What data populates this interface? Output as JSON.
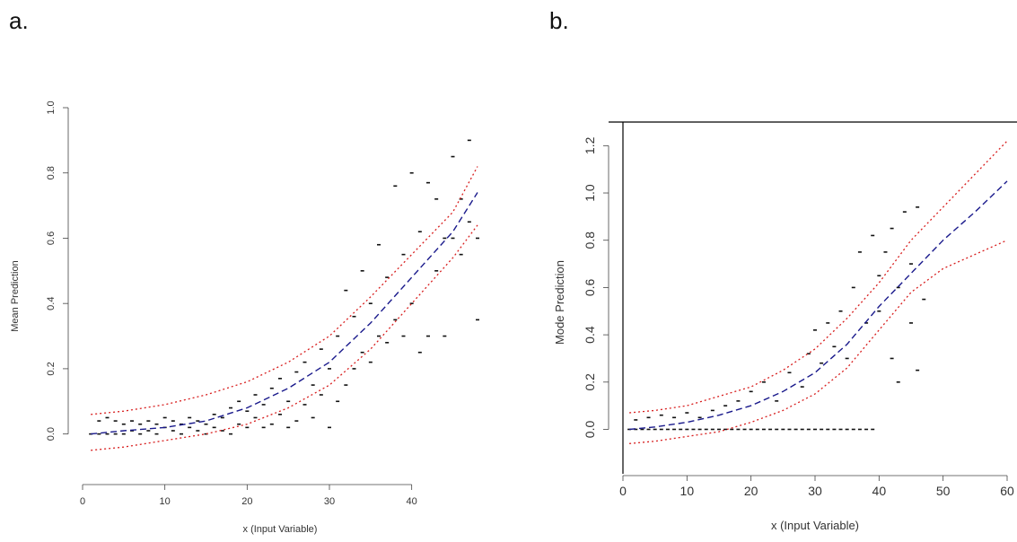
{
  "panels": {
    "a_label": "a.",
    "b_label": "b."
  },
  "colors": {
    "points": "#111111",
    "mean": "#1a1a8c",
    "interval": "#d81e1e",
    "frame": "#000000"
  },
  "chart_data": [
    {
      "type": "scatter",
      "panel": "a.",
      "xlabel": "x (Input Variable)",
      "ylabel": "Mean Prediction",
      "xlim": [
        0,
        48
      ],
      "ylim": [
        -0.1,
        1.0
      ],
      "xticks": [
        "0",
        "10",
        "20",
        "30",
        "40"
      ],
      "xtick_values": [
        0,
        10,
        20,
        30,
        40
      ],
      "yticks": [
        "0.0",
        "0.2",
        "0.4",
        "0.6",
        "0.8",
        "1.0"
      ],
      "ytick_values": [
        0.0,
        0.2,
        0.4,
        0.6,
        0.8,
        1.0
      ],
      "frame": false,
      "points": [
        [
          1,
          0.0
        ],
        [
          2,
          0.0
        ],
        [
          2,
          0.04
        ],
        [
          3,
          0.0
        ],
        [
          3,
          0.05
        ],
        [
          4,
          0.0
        ],
        [
          4,
          0.04
        ],
        [
          5,
          0.0
        ],
        [
          5,
          0.03
        ],
        [
          6,
          0.01
        ],
        [
          6,
          0.04
        ],
        [
          7,
          0.0
        ],
        [
          7,
          0.03
        ],
        [
          8,
          0.01
        ],
        [
          8,
          0.04
        ],
        [
          9,
          0.0
        ],
        [
          9,
          0.03
        ],
        [
          10,
          0.02
        ],
        [
          10,
          0.05
        ],
        [
          11,
          0.01
        ],
        [
          11,
          0.04
        ],
        [
          12,
          0.0
        ],
        [
          12,
          0.03
        ],
        [
          13,
          0.02
        ],
        [
          13,
          0.05
        ],
        [
          14,
          0.01
        ],
        [
          14,
          0.04
        ],
        [
          15,
          0.0
        ],
        [
          15,
          0.03
        ],
        [
          16,
          0.02
        ],
        [
          16,
          0.06
        ],
        [
          17,
          0.01
        ],
        [
          17,
          0.05
        ],
        [
          18,
          0.0
        ],
        [
          18,
          0.08
        ],
        [
          19,
          0.03
        ],
        [
          19,
          0.1
        ],
        [
          20,
          0.02
        ],
        [
          20,
          0.07
        ],
        [
          21,
          0.05
        ],
        [
          21,
          0.12
        ],
        [
          22,
          0.02
        ],
        [
          22,
          0.09
        ],
        [
          23,
          0.03
        ],
        [
          23,
          0.14
        ],
        [
          24,
          0.06
        ],
        [
          24,
          0.17
        ],
        [
          25,
          0.02
        ],
        [
          25,
          0.1
        ],
        [
          26,
          0.04
        ],
        [
          26,
          0.19
        ],
        [
          27,
          0.09
        ],
        [
          27,
          0.22
        ],
        [
          28,
          0.05
        ],
        [
          28,
          0.15
        ],
        [
          29,
          0.12
        ],
        [
          29,
          0.26
        ],
        [
          30,
          0.02
        ],
        [
          30,
          0.2
        ],
        [
          31,
          0.1
        ],
        [
          31,
          0.3
        ],
        [
          32,
          0.15
        ],
        [
          32,
          0.44
        ],
        [
          33,
          0.2
        ],
        [
          33,
          0.36
        ],
        [
          34,
          0.25
        ],
        [
          34,
          0.5
        ],
        [
          35,
          0.22
        ],
        [
          35,
          0.4
        ],
        [
          36,
          0.3
        ],
        [
          36,
          0.58
        ],
        [
          37,
          0.28
        ],
        [
          37,
          0.48
        ],
        [
          38,
          0.35
        ],
        [
          38,
          0.76
        ],
        [
          39,
          0.3
        ],
        [
          39,
          0.55
        ],
        [
          40,
          0.4
        ],
        [
          40,
          0.8
        ],
        [
          41,
          0.25
        ],
        [
          41,
          0.62
        ],
        [
          42,
          0.3
        ],
        [
          42,
          0.77
        ],
        [
          43,
          0.5
        ],
        [
          43,
          0.72
        ],
        [
          44,
          0.3
        ],
        [
          44,
          0.6
        ],
        [
          45,
          0.6
        ],
        [
          45,
          0.85
        ],
        [
          46,
          0.55
        ],
        [
          46,
          0.72
        ],
        [
          47,
          0.65
        ],
        [
          47,
          0.9
        ],
        [
          48,
          0.35
        ],
        [
          48,
          0.6
        ]
      ],
      "mean_line": [
        [
          1,
          0.0
        ],
        [
          5,
          0.01
        ],
        [
          10,
          0.02
        ],
        [
          15,
          0.04
        ],
        [
          20,
          0.08
        ],
        [
          25,
          0.14
        ],
        [
          30,
          0.22
        ],
        [
          35,
          0.34
        ],
        [
          40,
          0.48
        ],
        [
          45,
          0.62
        ],
        [
          48,
          0.74
        ]
      ],
      "upper_line": [
        [
          1,
          0.06
        ],
        [
          5,
          0.07
        ],
        [
          10,
          0.09
        ],
        [
          15,
          0.12
        ],
        [
          20,
          0.16
        ],
        [
          25,
          0.22
        ],
        [
          30,
          0.3
        ],
        [
          35,
          0.42
        ],
        [
          40,
          0.55
        ],
        [
          45,
          0.68
        ],
        [
          48,
          0.82
        ]
      ],
      "lower_line": [
        [
          1,
          -0.05
        ],
        [
          5,
          -0.04
        ],
        [
          10,
          -0.02
        ],
        [
          15,
          0.0
        ],
        [
          20,
          0.03
        ],
        [
          25,
          0.08
        ],
        [
          30,
          0.15
        ],
        [
          35,
          0.26
        ],
        [
          40,
          0.4
        ],
        [
          45,
          0.54
        ],
        [
          48,
          0.64
        ]
      ]
    },
    {
      "type": "scatter",
      "panel": "b.",
      "xlabel": "x (Input Variable)",
      "ylabel": "Mode Prediction",
      "xlim": [
        0,
        60
      ],
      "ylim": [
        -0.15,
        1.3
      ],
      "xticks": [
        "0",
        "10",
        "20",
        "30",
        "40",
        "50",
        "60"
      ],
      "xtick_values": [
        0,
        10,
        20,
        30,
        40,
        50,
        60
      ],
      "yticks": [
        "0.0",
        "0.2",
        "0.4",
        "0.6",
        "0.8",
        "1.0",
        "1.2"
      ],
      "ytick_values": [
        0.0,
        0.2,
        0.4,
        0.6,
        0.8,
        1.0,
        1.2
      ],
      "frame": true,
      "points": [
        [
          1,
          0.0
        ],
        [
          2,
          0.0
        ],
        [
          2,
          0.04
        ],
        [
          3,
          0.0
        ],
        [
          4,
          0.0
        ],
        [
          4,
          0.05
        ],
        [
          5,
          0.0
        ],
        [
          6,
          0.0
        ],
        [
          6,
          0.06
        ],
        [
          7,
          0.0
        ],
        [
          8,
          0.0
        ],
        [
          8,
          0.05
        ],
        [
          9,
          0.0
        ],
        [
          10,
          0.0
        ],
        [
          10,
          0.07
        ],
        [
          11,
          0.0
        ],
        [
          12,
          0.0
        ],
        [
          12,
          0.05
        ],
        [
          13,
          0.0
        ],
        [
          14,
          0.0
        ],
        [
          14,
          0.08
        ],
        [
          15,
          0.0
        ],
        [
          16,
          0.0
        ],
        [
          16,
          0.1
        ],
        [
          17,
          0.0
        ],
        [
          18,
          0.0
        ],
        [
          18,
          0.12
        ],
        [
          19,
          0.0
        ],
        [
          20,
          0.0
        ],
        [
          20,
          0.16
        ],
        [
          21,
          0.0
        ],
        [
          22,
          0.0
        ],
        [
          22,
          0.2
        ],
        [
          23,
          0.0
        ],
        [
          24,
          0.0
        ],
        [
          24,
          0.12
        ],
        [
          25,
          0.0
        ],
        [
          26,
          0.0
        ],
        [
          26,
          0.24
        ],
        [
          27,
          0.0
        ],
        [
          28,
          0.0
        ],
        [
          28,
          0.18
        ],
        [
          29,
          0.0
        ],
        [
          29,
          0.32
        ],
        [
          30,
          0.0
        ],
        [
          30,
          0.42
        ],
        [
          31,
          0.0
        ],
        [
          31,
          0.28
        ],
        [
          32,
          0.0
        ],
        [
          32,
          0.45
        ],
        [
          33,
          0.0
        ],
        [
          33,
          0.35
        ],
        [
          34,
          0.0
        ],
        [
          34,
          0.5
        ],
        [
          35,
          0.0
        ],
        [
          35,
          0.3
        ],
        [
          36,
          0.0
        ],
        [
          36,
          0.6
        ],
        [
          37,
          0.0
        ],
        [
          37,
          0.75
        ],
        [
          38,
          0.0
        ],
        [
          38,
          0.45
        ],
        [
          39,
          0.0
        ],
        [
          39,
          0.82
        ],
        [
          40,
          0.65
        ],
        [
          40,
          0.5
        ],
        [
          41,
          0.75
        ],
        [
          42,
          0.3
        ],
        [
          42,
          0.85
        ],
        [
          43,
          0.6
        ],
        [
          43,
          0.2
        ],
        [
          44,
          0.92
        ],
        [
          45,
          0.7
        ],
        [
          45,
          0.45
        ],
        [
          46,
          0.94
        ],
        [
          46,
          0.25
        ],
        [
          47,
          0.55
        ]
      ],
      "mean_line": [
        [
          1,
          0.0
        ],
        [
          5,
          0.01
        ],
        [
          10,
          0.03
        ],
        [
          15,
          0.06
        ],
        [
          20,
          0.1
        ],
        [
          25,
          0.16
        ],
        [
          30,
          0.24
        ],
        [
          35,
          0.36
        ],
        [
          40,
          0.52
        ],
        [
          45,
          0.66
        ],
        [
          50,
          0.8
        ],
        [
          55,
          0.92
        ],
        [
          60,
          1.05
        ]
      ],
      "upper_line": [
        [
          1,
          0.07
        ],
        [
          5,
          0.08
        ],
        [
          10,
          0.1
        ],
        [
          15,
          0.14
        ],
        [
          20,
          0.18
        ],
        [
          25,
          0.25
        ],
        [
          30,
          0.34
        ],
        [
          35,
          0.47
        ],
        [
          40,
          0.62
        ],
        [
          45,
          0.8
        ],
        [
          50,
          0.94
        ],
        [
          55,
          1.08
        ],
        [
          60,
          1.22
        ]
      ],
      "lower_line": [
        [
          1,
          -0.06
        ],
        [
          5,
          -0.05
        ],
        [
          10,
          -0.03
        ],
        [
          15,
          -0.01
        ],
        [
          20,
          0.03
        ],
        [
          25,
          0.08
        ],
        [
          30,
          0.15
        ],
        [
          35,
          0.26
        ],
        [
          40,
          0.42
        ],
        [
          45,
          0.58
        ],
        [
          50,
          0.68
        ],
        [
          55,
          0.74
        ],
        [
          60,
          0.8
        ]
      ]
    }
  ]
}
